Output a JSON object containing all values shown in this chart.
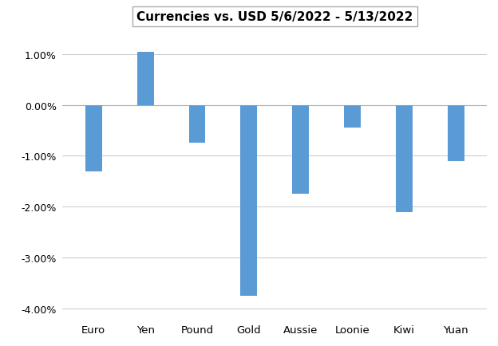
{
  "categories": [
    "Euro",
    "Yen",
    "Pound",
    "Gold",
    "Aussie",
    "Loonie",
    "Kiwi",
    "Yuan"
  ],
  "values": [
    -1.3,
    1.05,
    -0.75,
    -3.75,
    -1.75,
    -0.45,
    -2.1,
    -1.1
  ],
  "bar_color": "#5B9BD5",
  "title": "Currencies vs. USD 5/6/2022 - 5/13/2022",
  "title_fontsize": 11,
  "title_fontweight": "bold",
  "ylim": [
    -4.2,
    1.5
  ],
  "yticks": [
    -4.0,
    -3.0,
    -2.0,
    -1.0,
    0.0,
    1.0
  ],
  "background_color": "#FFFFFF",
  "grid_color": "#C8C8C8",
  "bar_width": 0.32,
  "tick_fontsize": 9,
  "xlabel_fontsize": 9.5
}
